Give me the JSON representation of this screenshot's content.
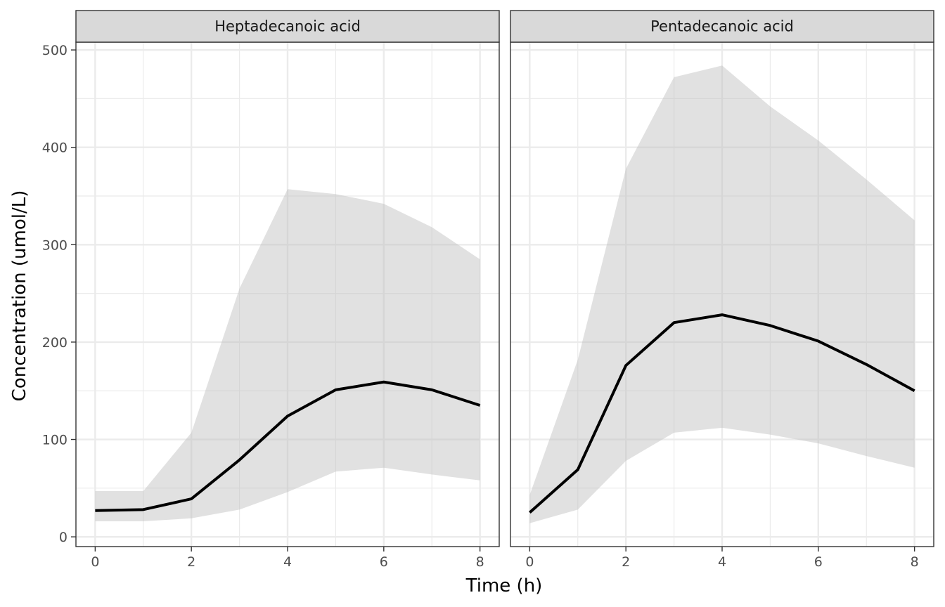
{
  "chart_data": {
    "type": "area",
    "xlabel": "Time (h)",
    "ylabel": "Concentration (umol/L)",
    "xlim": [
      -0.4,
      8.4
    ],
    "ylim": [
      -10,
      508
    ],
    "x_ticks": [
      0,
      2,
      4,
      6,
      8
    ],
    "y_ticks": [
      0,
      100,
      200,
      300,
      400,
      500
    ],
    "grid": true,
    "legend": "none",
    "colors": {
      "ribbon": "#e0e0e0",
      "line": "#000000",
      "strip": "#d9d9d9",
      "grid": "#ebebeb",
      "border": "#333333"
    },
    "panels": [
      {
        "title": "Heptadecanoic acid",
        "x": [
          0,
          1,
          2,
          3,
          4,
          5,
          6,
          7,
          8
        ],
        "median": [
          27,
          28,
          39,
          79,
          124,
          151,
          159,
          151,
          135
        ],
        "lower": [
          16,
          16,
          19,
          28,
          46,
          67,
          71,
          64,
          58
        ],
        "upper": [
          47,
          47,
          107,
          255,
          357,
          352,
          342,
          318,
          285
        ]
      },
      {
        "title": "Pentadecanoic acid",
        "x": [
          0,
          1,
          2,
          3,
          4,
          5,
          6,
          7,
          8
        ],
        "median": [
          25,
          69,
          176,
          220,
          228,
          217,
          201,
          177,
          150
        ],
        "lower": [
          14,
          28,
          78,
          107,
          112,
          105,
          96,
          83,
          71
        ],
        "upper": [
          43,
          182,
          378,
          472,
          484,
          442,
          407,
          367,
          325
        ]
      }
    ]
  }
}
